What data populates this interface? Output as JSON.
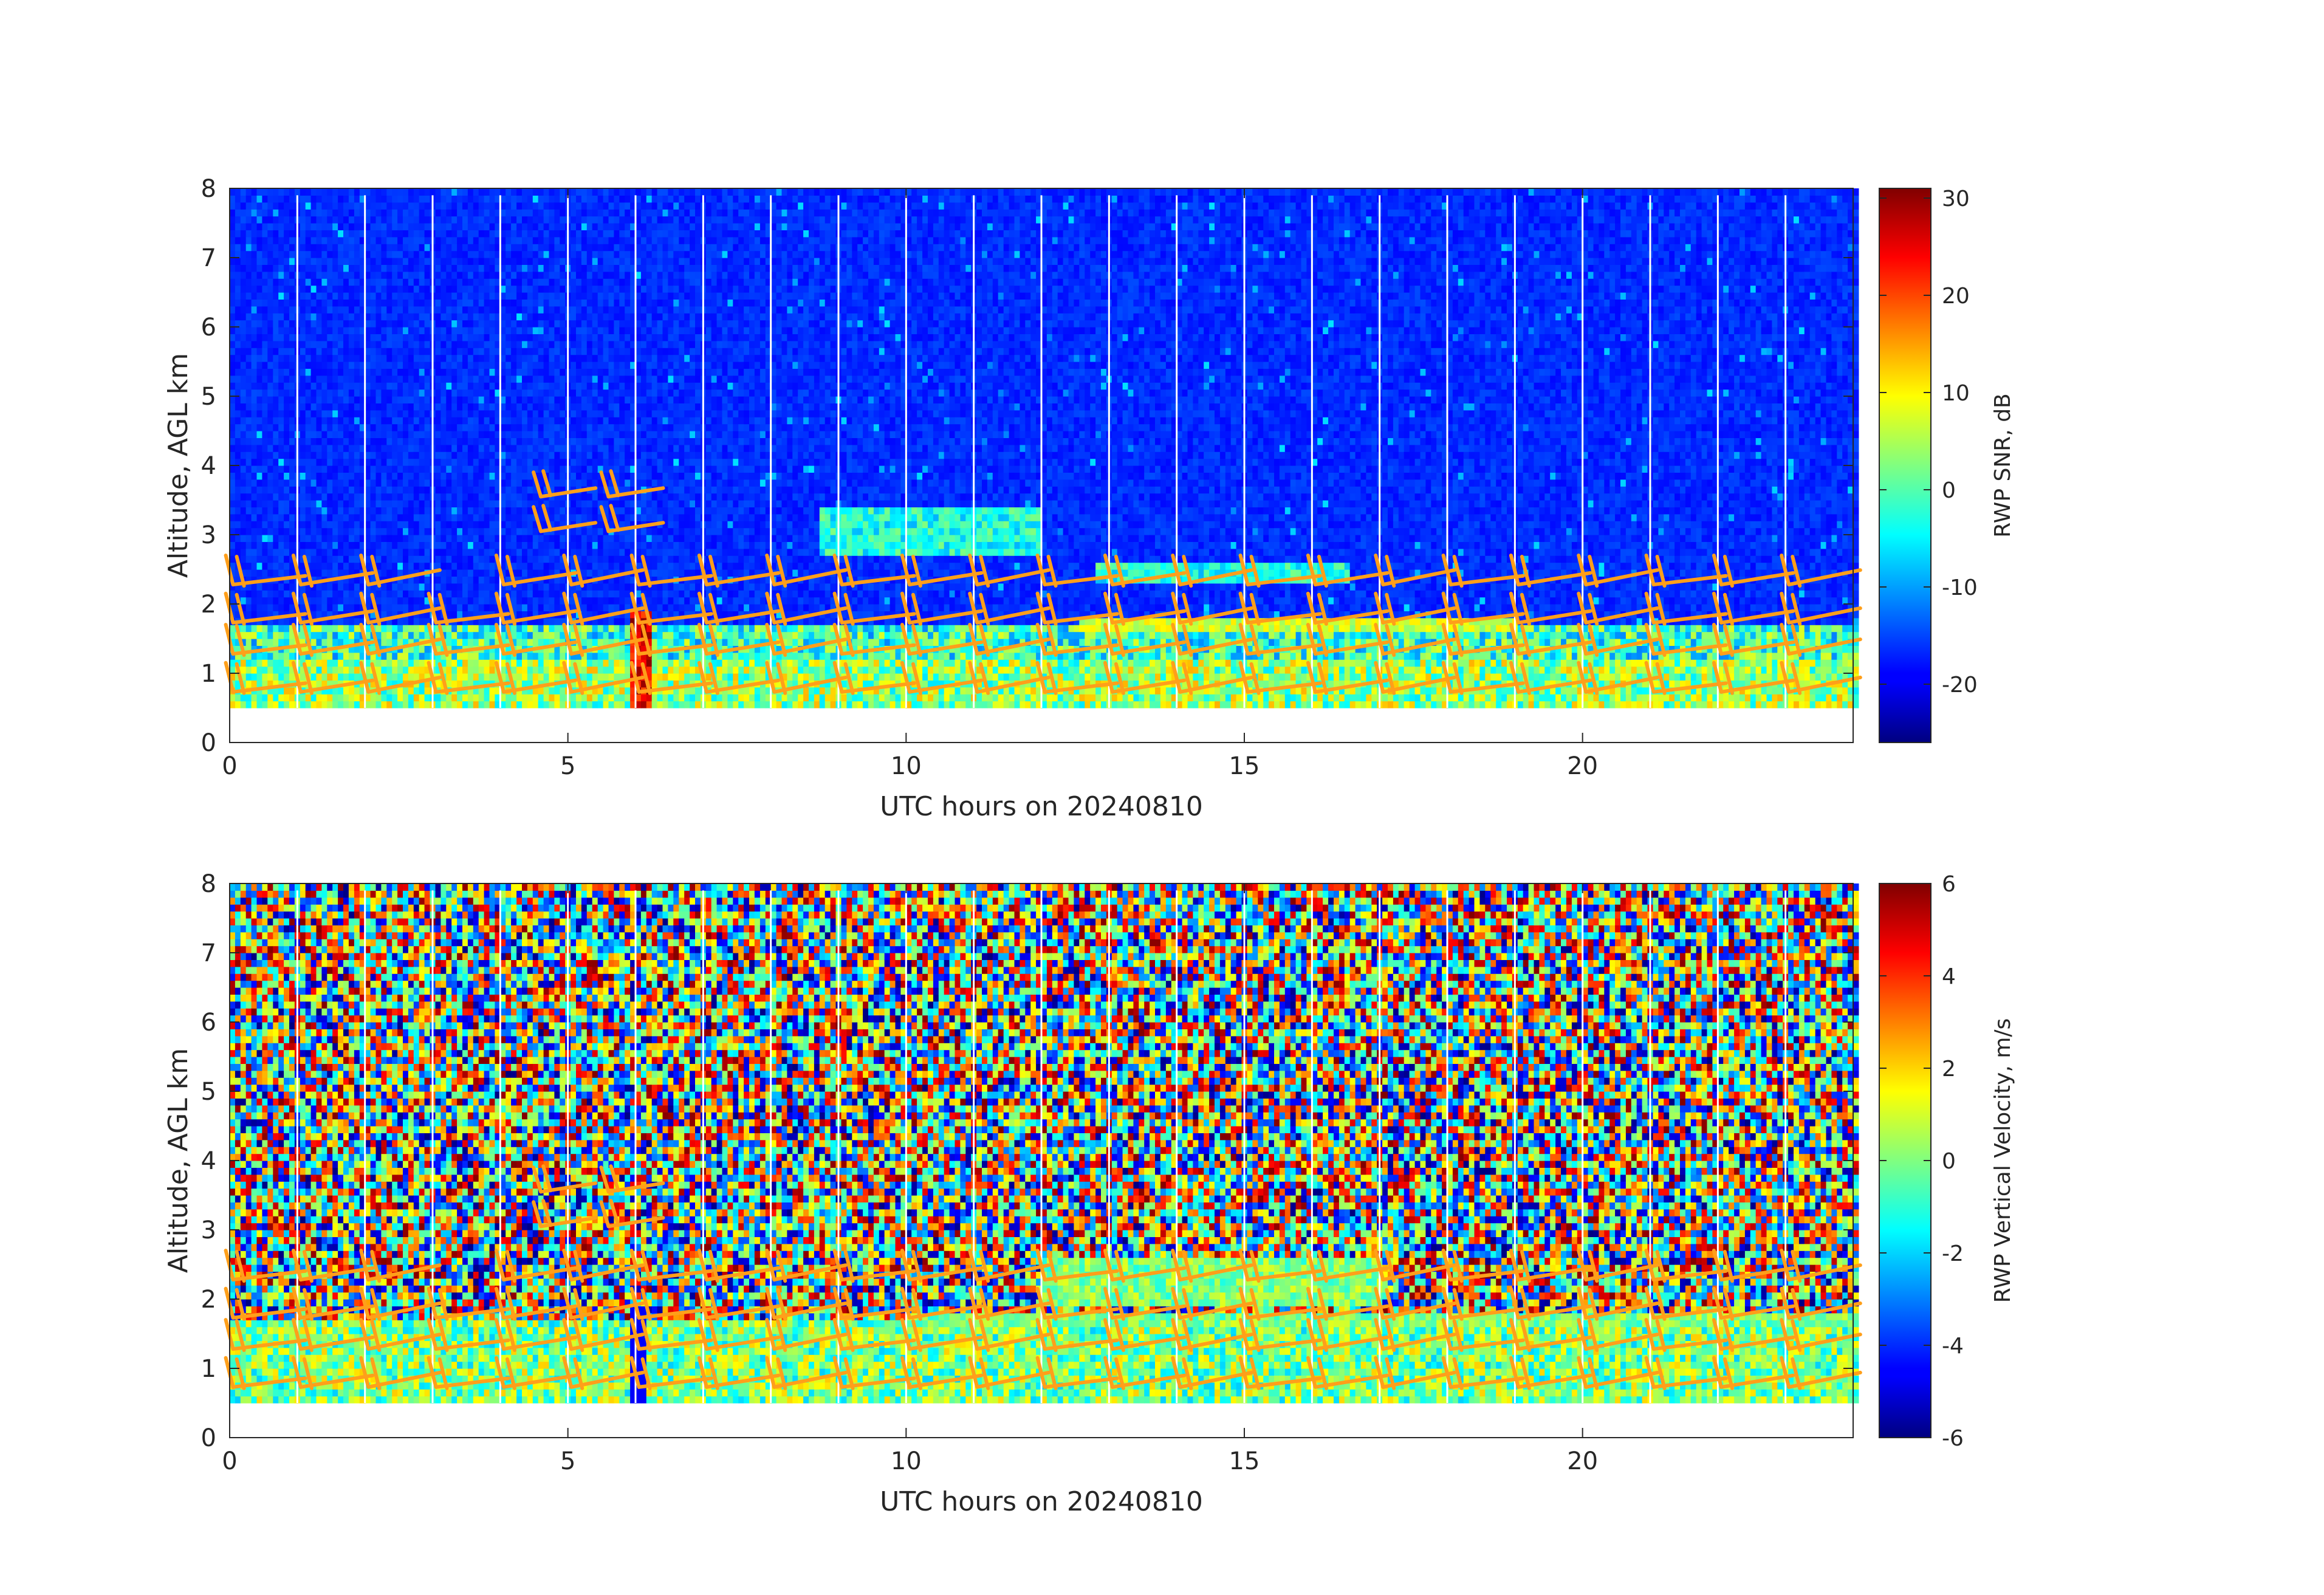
{
  "chart_data": [
    {
      "type": "heatmap",
      "title": "",
      "xlabel": "UTC hours on 20240810",
      "ylabel": "Altitude, AGL km",
      "xlim": [
        0,
        24
      ],
      "ylim": [
        0,
        8
      ],
      "x_ticks": [
        "0",
        "5",
        "10",
        "15",
        "20"
      ],
      "y_ticks": [
        "0",
        "1",
        "2",
        "3",
        "4",
        "5",
        "6",
        "7",
        "8"
      ],
      "data_altitude_range_km": [
        0.5,
        7.9
      ],
      "colormap": "jet",
      "colorbar": {
        "label": "RWP SNR, dB",
        "range": [
          -26,
          31
        ],
        "ticks": [
          "30",
          "20",
          "10",
          "0",
          "-10",
          "-20"
        ]
      },
      "overlay": "wind barbs (orange)",
      "overlay_color": "#ff9f1a",
      "grid": false
    },
    {
      "type": "heatmap",
      "title": "",
      "xlabel": "UTC hours on 20240810",
      "ylabel": "Altitude, AGL km",
      "xlim": [
        0,
        24
      ],
      "ylim": [
        0,
        8
      ],
      "x_ticks": [
        "0",
        "5",
        "10",
        "15",
        "20"
      ],
      "y_ticks": [
        "0",
        "1",
        "2",
        "3",
        "4",
        "5",
        "6",
        "7",
        "8"
      ],
      "data_altitude_range_km": [
        0.5,
        7.9
      ],
      "colormap": "jet",
      "colorbar": {
        "label": "RWP Vertical Velocity, m/s",
        "range": [
          -6,
          6
        ],
        "ticks": [
          "6",
          "4",
          "2",
          "0",
          "-2",
          "-4",
          "-6"
        ]
      },
      "overlay": "wind barbs (orange)",
      "overlay_color": "#ff9f1a",
      "grid": false
    }
  ]
}
